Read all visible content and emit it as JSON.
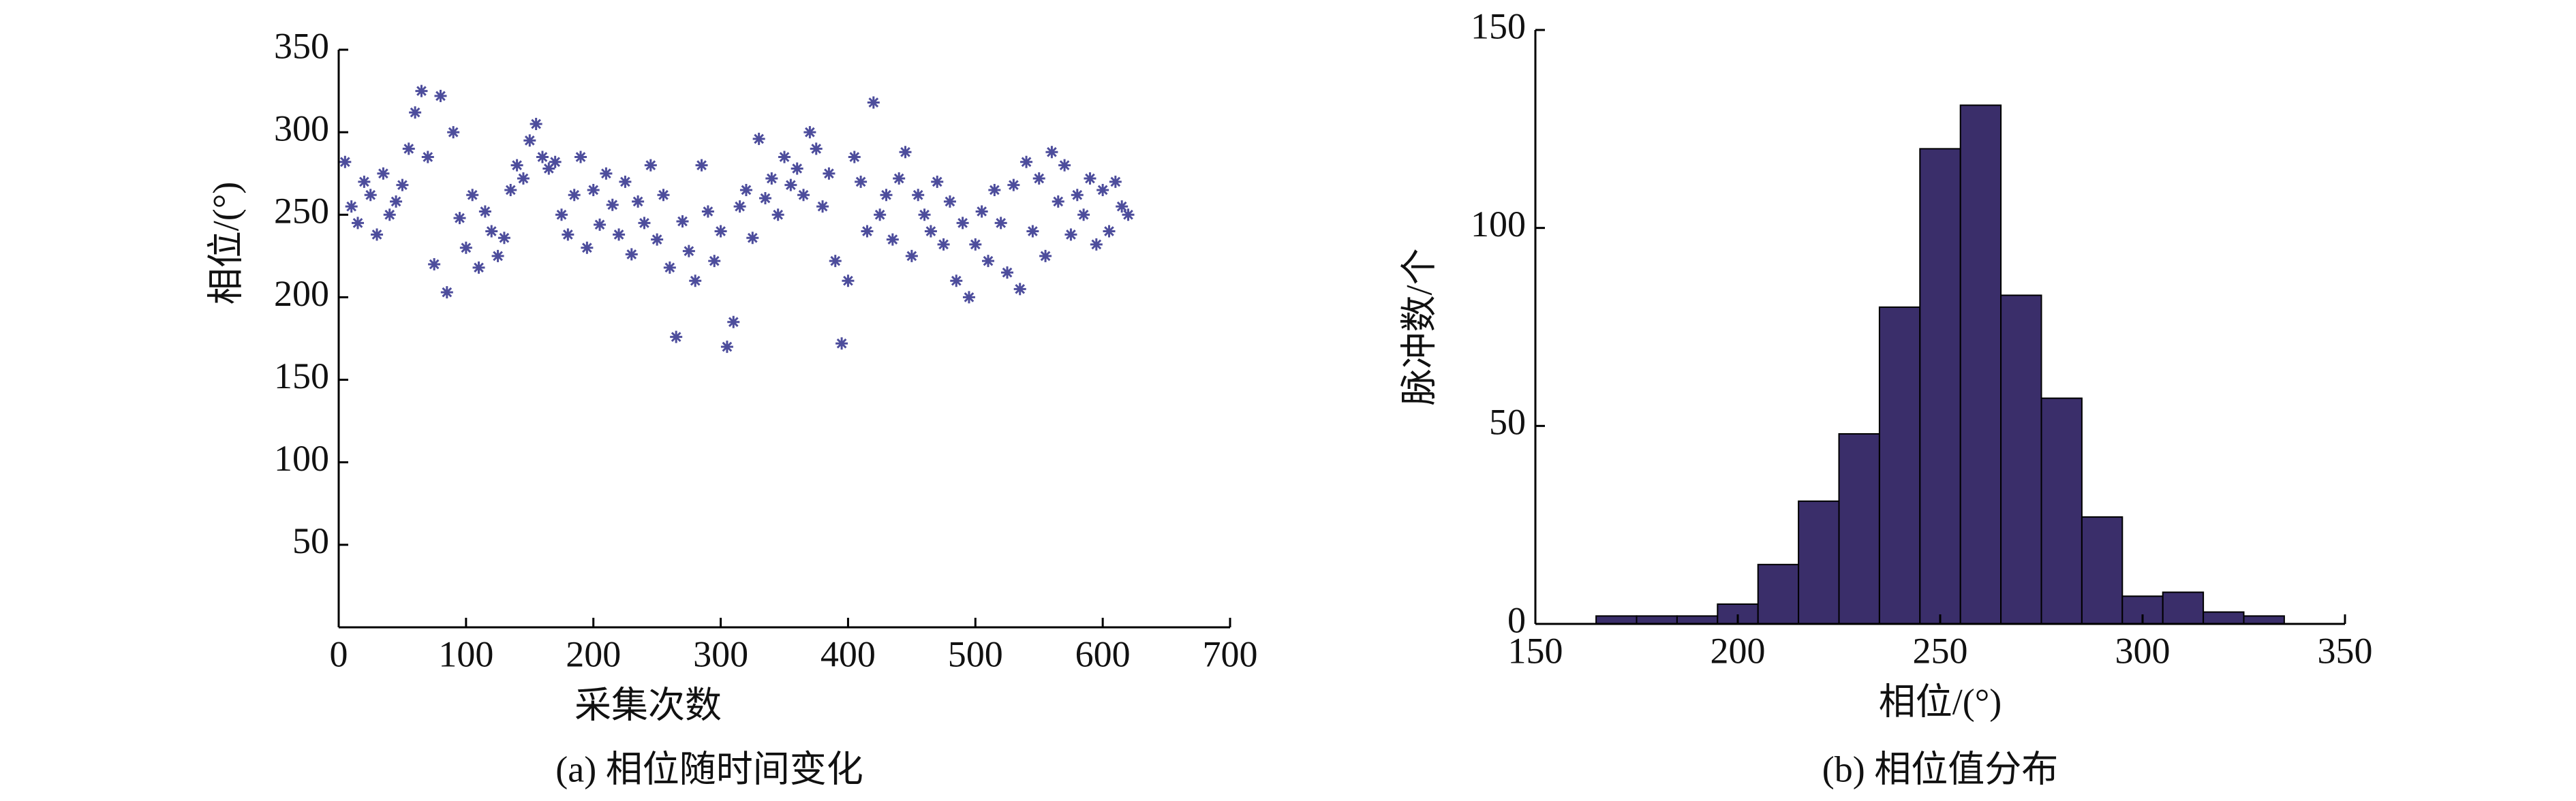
{
  "chart_data": [
    {
      "type": "scatter",
      "xlabel": "采集次数",
      "ylabel": "相位/(°)",
      "caption": "(a) 相位随时间变化",
      "color": "#4d4d9c",
      "marker": "*",
      "xlim": [
        0,
        700
      ],
      "xticks": [
        0,
        100,
        200,
        300,
        400,
        500,
        600,
        700
      ],
      "ylim": [
        0,
        350
      ],
      "yticks": [
        50,
        100,
        150,
        200,
        250,
        300,
        350
      ],
      "x": [
        5,
        10,
        15,
        20,
        25,
        30,
        35,
        40,
        45,
        50,
        55,
        60,
        65,
        70,
        75,
        80,
        85,
        90,
        95,
        100,
        105,
        110,
        115,
        120,
        125,
        130,
        135,
        140,
        145,
        150,
        155,
        160,
        165,
        170,
        175,
        180,
        185,
        190,
        195,
        200,
        205,
        210,
        215,
        220,
        225,
        230,
        235,
        240,
        245,
        250,
        255,
        260,
        265,
        270,
        275,
        280,
        285,
        290,
        295,
        300,
        305,
        310,
        315,
        320,
        325,
        330,
        335,
        340,
        345,
        350,
        355,
        360,
        365,
        370,
        375,
        380,
        385,
        390,
        395,
        400,
        405,
        410,
        415,
        420,
        425,
        430,
        435,
        440,
        445,
        450,
        455,
        460,
        465,
        470,
        475,
        480,
        485,
        490,
        495,
        500,
        505,
        510,
        515,
        520,
        525,
        530,
        535,
        540,
        545,
        550,
        555,
        560,
        565,
        570,
        575,
        580,
        585,
        590,
        595,
        600,
        605,
        610,
        615,
        620
      ],
      "values": [
        282,
        255,
        245,
        270,
        262,
        238,
        275,
        250,
        258,
        268,
        290,
        312,
        325,
        285,
        220,
        322,
        203,
        300,
        248,
        230,
        262,
        218,
        252,
        240,
        225,
        236,
        265,
        280,
        272,
        295,
        305,
        285,
        278,
        282,
        250,
        238,
        262,
        285,
        230,
        265,
        244,
        275,
        256,
        238,
        270,
        226,
        258,
        245,
        280,
        235,
        262,
        218,
        176,
        246,
        228,
        210,
        280,
        252,
        222,
        240,
        170,
        185,
        255,
        265,
        236,
        296,
        260,
        272,
        250,
        285,
        268,
        278,
        262,
        300,
        290,
        255,
        275,
        222,
        172,
        210,
        285,
        270,
        240,
        318,
        250,
        262,
        235,
        272,
        288,
        225,
        262,
        250,
        240,
        270,
        232,
        258,
        210,
        245,
        200,
        232,
        252,
        222,
        265,
        245,
        215,
        268,
        205,
        282,
        240,
        272,
        225,
        288,
        258,
        280,
        238,
        262,
        250,
        272,
        232,
        265,
        240,
        270,
        255,
        250
      ]
    },
    {
      "type": "histogram",
      "xlabel": "相位/(°)",
      "ylabel": "脉冲数/个",
      "caption": "(b) 相位值分布",
      "color": "#3a2e6a",
      "edgecolor": "#000000",
      "xlim": [
        150,
        350
      ],
      "xticks": [
        150,
        200,
        250,
        300,
        350
      ],
      "ylim": [
        0,
        150
      ],
      "yticks": [
        0,
        50,
        100,
        150
      ],
      "bins": [
        165,
        175,
        185,
        195,
        205,
        215,
        225,
        235,
        245,
        255,
        265,
        275,
        285,
        295,
        305,
        315,
        325,
        335
      ],
      "values": [
        2,
        2,
        2,
        5,
        15,
        31,
        48,
        80,
        120,
        131,
        83,
        57,
        27,
        7,
        8,
        3,
        2
      ]
    }
  ]
}
